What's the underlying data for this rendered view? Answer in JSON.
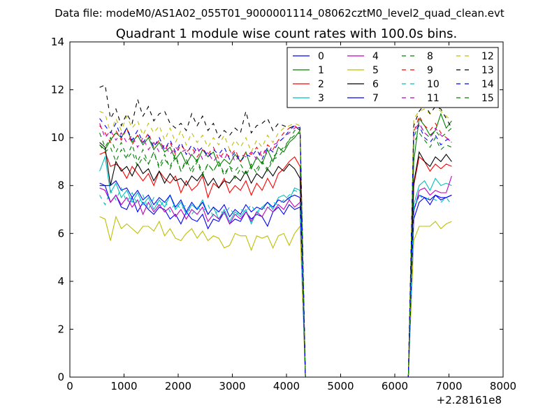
{
  "suptitle": "Data file: modeM0/AS1A02_055T01_9000001114_08062cztM0_level2_quad_clean.evt",
  "chart_data": {
    "type": "line",
    "title": "Quadrant 1 module wise count rates with 100.0s bins.",
    "xlabel": "",
    "ylabel": "",
    "x_offset_label": "+2.28161e8",
    "xlim": [
      0,
      8000
    ],
    "ylim": [
      0,
      14
    ],
    "x_ticks": [
      "0",
      "1000",
      "2000",
      "3000",
      "4000",
      "5000",
      "6000",
      "7000",
      "8000"
    ],
    "y_ticks": [
      "0",
      "2",
      "4",
      "6",
      "8",
      "10",
      "12",
      "14"
    ],
    "grid": false,
    "legend_position": "top-right",
    "legend_columns": 4,
    "x": [
      550,
      650,
      750,
      850,
      950,
      1050,
      1150,
      1250,
      1350,
      1450,
      1550,
      1650,
      1750,
      1850,
      1950,
      2050,
      2150,
      2250,
      2350,
      2450,
      2550,
      2650,
      2750,
      2850,
      2950,
      3050,
      3150,
      3250,
      3350,
      3450,
      3550,
      3650,
      3750,
      3850,
      3950,
      4050,
      4150,
      4250,
      4350,
      4450,
      4550,
      4650,
      4750,
      4850,
      4950,
      5050,
      5150,
      5250,
      5350,
      5450,
      5550,
      5650,
      5750,
      5850,
      5950,
      6050,
      6150,
      6250,
      6350,
      6450,
      6550,
      6650,
      6750,
      6850,
      6950,
      7050
    ],
    "series": [
      {
        "name": "0",
        "color": "#0000ff",
        "dash": "solid",
        "values": [
          8.0,
          8.0,
          7.3,
          7.6,
          7.1,
          7.0,
          7.5,
          6.9,
          7.3,
          7.0,
          6.8,
          7.1,
          7.0,
          6.6,
          6.8,
          6.4,
          6.9,
          6.6,
          6.5,
          6.8,
          6.2,
          6.6,
          6.5,
          6.9,
          6.4,
          6.6,
          6.5,
          6.9,
          6.6,
          6.8,
          6.7,
          6.3,
          6.9,
          7.1,
          6.8,
          7.2,
          7.0,
          7.1,
          0,
          0,
          0,
          0,
          0,
          0,
          0,
          0,
          0,
          0,
          0,
          0,
          0,
          0,
          0,
          0,
          0,
          0,
          0,
          0,
          6.6,
          7.3,
          7.5,
          7.2,
          7.6,
          7.4,
          7.5,
          7.6
        ]
      },
      {
        "name": "1",
        "color": "#008000",
        "dash": "solid",
        "values": [
          9.7,
          9.5,
          9.9,
          10.2,
          10.0,
          10.4,
          9.8,
          10.1,
          9.7,
          10.0,
          9.5,
          9.8,
          9.4,
          9.6,
          9.1,
          9.4,
          8.9,
          9.3,
          9.0,
          9.5,
          9.2,
          9.4,
          8.8,
          9.1,
          8.9,
          9.3,
          9.0,
          9.4,
          8.7,
          9.2,
          8.9,
          9.5,
          9.0,
          9.6,
          9.4,
          9.8,
          10.0,
          10.3,
          0,
          0,
          0,
          0,
          0,
          0,
          0,
          0,
          0,
          0,
          0,
          0,
          0,
          0,
          0,
          0,
          0,
          0,
          0,
          0,
          9.0,
          10.8,
          10.5,
          10.1,
          10.3,
          11.0,
          10.4,
          10.7
        ]
      },
      {
        "name": "2",
        "color": "#ff0000",
        "dash": "solid",
        "values": [
          9.3,
          9.4,
          8.8,
          8.9,
          8.7,
          8.3,
          8.8,
          8.5,
          8.2,
          8.5,
          8.0,
          8.6,
          8.3,
          8.1,
          8.4,
          7.7,
          8.2,
          7.8,
          8.0,
          8.4,
          7.5,
          8.1,
          7.9,
          8.3,
          7.7,
          8.0,
          7.8,
          8.2,
          7.6,
          8.1,
          7.8,
          8.3,
          7.9,
          8.5,
          8.7,
          9.0,
          9.2,
          8.8,
          0,
          0,
          0,
          0,
          0,
          0,
          0,
          0,
          0,
          0,
          0,
          0,
          0,
          0,
          0,
          0,
          0,
          0,
          0,
          0,
          8.0,
          9.2,
          9.0,
          8.6,
          8.9,
          8.7,
          8.9,
          8.8
        ]
      },
      {
        "name": "3",
        "color": "#00bfbf",
        "dash": "solid",
        "values": [
          8.6,
          9.2,
          7.7,
          8.1,
          7.5,
          7.8,
          7.3,
          7.7,
          7.2,
          7.5,
          7.0,
          7.4,
          7.1,
          7.6,
          7.0,
          7.3,
          6.8,
          7.2,
          7.0,
          7.4,
          6.8,
          7.1,
          6.6,
          7.0,
          6.5,
          6.9,
          6.7,
          7.0,
          6.4,
          6.9,
          7.1,
          7.3,
          7.0,
          7.5,
          7.6,
          7.4,
          7.9,
          7.8,
          0,
          0,
          0,
          0,
          0,
          0,
          0,
          0,
          0,
          0,
          0,
          0,
          0,
          0,
          0,
          0,
          0,
          0,
          0,
          0,
          7.2,
          8.0,
          8.2,
          7.8,
          8.3,
          8.0,
          8.1,
          8.0
        ]
      },
      {
        "name": "4",
        "color": "#bf00bf",
        "dash": "solid",
        "values": [
          7.9,
          7.8,
          7.3,
          7.6,
          7.2,
          7.5,
          7.1,
          7.4,
          6.8,
          7.3,
          6.9,
          7.2,
          6.9,
          7.1,
          6.7,
          7.0,
          6.6,
          7.0,
          6.8,
          7.1,
          6.5,
          6.8,
          6.6,
          6.9,
          6.4,
          6.8,
          6.6,
          6.9,
          6.5,
          6.9,
          6.7,
          7.1,
          6.9,
          7.2,
          7.0,
          7.4,
          7.1,
          7.3,
          0,
          0,
          0,
          0,
          0,
          0,
          0,
          0,
          0,
          0,
          0,
          0,
          0,
          0,
          0,
          0,
          0,
          0,
          0,
          0,
          6.9,
          7.8,
          7.9,
          7.6,
          7.8,
          7.7,
          7.7,
          8.4
        ]
      },
      {
        "name": "5",
        "color": "#bfbf00",
        "dash": "solid",
        "values": [
          6.7,
          6.6,
          5.7,
          6.7,
          6.2,
          6.4,
          6.2,
          6.0,
          6.3,
          6.3,
          6.1,
          6.5,
          5.9,
          6.2,
          5.8,
          5.7,
          6.0,
          6.2,
          5.8,
          6.1,
          5.7,
          5.9,
          5.8,
          5.4,
          5.5,
          6.0,
          5.9,
          5.9,
          5.3,
          5.9,
          5.8,
          5.9,
          5.4,
          5.9,
          6.0,
          5.5,
          6.0,
          6.3,
          0,
          0,
          0,
          0,
          0,
          0,
          0,
          0,
          0,
          0,
          0,
          0,
          0,
          0,
          0,
          0,
          0,
          0,
          0,
          0,
          5.7,
          6.3,
          6.3,
          6.3,
          6.5,
          6.2,
          6.4,
          6.5
        ]
      },
      {
        "name": "6",
        "color": "#000000",
        "dash": "solid",
        "values": [
          9.8,
          9.6,
          8.0,
          9.0,
          8.6,
          8.8,
          8.4,
          8.9,
          8.5,
          8.7,
          8.2,
          8.6,
          8.1,
          8.5,
          8.2,
          8.3,
          8.0,
          8.4,
          8.2,
          8.5,
          8.0,
          8.3,
          7.9,
          8.2,
          8.1,
          8.4,
          8.2,
          8.6,
          8.1,
          8.5,
          8.3,
          8.7,
          8.4,
          8.8,
          8.6,
          8.9,
          8.7,
          8.3,
          0,
          0,
          0,
          0,
          0,
          0,
          0,
          0,
          0,
          0,
          0,
          0,
          0,
          0,
          0,
          0,
          0,
          0,
          0,
          0,
          8.1,
          9.4,
          9.0,
          8.8,
          9.2,
          9.0,
          9.3,
          9.0
        ]
      },
      {
        "name": "7",
        "color": "#0000ff",
        "dash": "solid",
        "values": [
          8.1,
          8.0,
          8.0,
          8.2,
          7.8,
          7.9,
          7.5,
          7.8,
          7.4,
          7.6,
          7.2,
          7.5,
          7.3,
          7.6,
          7.1,
          7.4,
          6.9,
          7.3,
          7.0,
          7.3,
          6.8,
          7.1,
          6.9,
          7.2,
          6.7,
          7.0,
          6.8,
          7.2,
          6.9,
          7.1,
          7.0,
          7.3,
          7.1,
          7.4,
          7.3,
          7.5,
          7.6,
          7.5,
          0,
          0,
          0,
          0,
          0,
          0,
          0,
          0,
          0,
          0,
          0,
          0,
          0,
          0,
          0,
          0,
          0,
          0,
          0,
          0,
          7.0,
          7.6,
          7.5,
          7.4,
          7.6,
          7.5,
          7.5,
          7.6
        ]
      },
      {
        "name": "8",
        "color": "#008000",
        "dash": "dash",
        "values": [
          9.7,
          9.4,
          9.6,
          9.0,
          9.5,
          9.1,
          9.4,
          8.8,
          9.2,
          8.9,
          9.4,
          8.7,
          9.1,
          8.8,
          9.3,
          8.6,
          9.0,
          8.7,
          9.1,
          8.5,
          8.9,
          8.6,
          9.0,
          8.4,
          8.8,
          8.6,
          8.9,
          8.5,
          8.8,
          8.7,
          9.0,
          8.6,
          9.1,
          9.2,
          9.5,
          9.9,
          10.3,
          10.4,
          0,
          0,
          0,
          0,
          0,
          0,
          0,
          0,
          0,
          0,
          0,
          0,
          0,
          0,
          0,
          0,
          0,
          0,
          0,
          0,
          10.0,
          10.6,
          10.2,
          10.0,
          10.3,
          10.0,
          10.2,
          10.4
        ]
      },
      {
        "name": "9",
        "color": "#ff0000",
        "dash": "dash",
        "values": [
          10.5,
          10.2,
          9.8,
          10.3,
          9.9,
          10.4,
          9.7,
          10.1,
          9.8,
          10.2,
          9.6,
          9.9,
          9.5,
          9.8,
          9.3,
          9.7,
          9.4,
          9.6,
          9.2,
          9.5,
          9.3,
          9.6,
          9.1,
          9.4,
          9.2,
          9.5,
          9.0,
          9.4,
          9.3,
          9.6,
          9.2,
          9.7,
          9.5,
          9.9,
          10.2,
          10.4,
          10.5,
          10.3,
          0,
          0,
          0,
          0,
          0,
          0,
          0,
          0,
          0,
          0,
          0,
          0,
          0,
          0,
          0,
          0,
          0,
          0,
          0,
          0,
          10.2,
          10.9,
          10.5,
          10.3,
          10.6,
          10.2,
          10.0,
          9.8
        ]
      },
      {
        "name": "10",
        "color": "#00bfbf",
        "dash": "dash",
        "values": [
          7.6,
          7.2,
          7.8,
          7.4,
          7.9,
          7.3,
          7.7,
          7.2,
          7.6,
          7.0,
          7.5,
          7.1,
          7.4,
          6.9,
          7.3,
          7.0,
          7.2,
          6.8,
          7.1,
          6.9,
          7.2,
          6.7,
          7.0,
          6.8,
          7.1,
          6.7,
          7.0,
          6.9,
          7.2,
          6.8,
          7.1,
          7.0,
          7.3,
          7.2,
          7.4,
          7.6,
          7.8,
          7.7,
          0,
          0,
          0,
          0,
          0,
          0,
          0,
          0,
          0,
          0,
          0,
          0,
          0,
          0,
          0,
          0,
          0,
          0,
          0,
          0,
          7.0,
          7.6,
          7.4,
          7.5,
          7.4,
          7.3,
          7.5,
          7.2
        ]
      },
      {
        "name": "11",
        "color": "#bf00bf",
        "dash": "dash",
        "values": [
          10.6,
          10.0,
          10.3,
          9.9,
          10.2,
          9.8,
          10.1,
          9.6,
          10.0,
          9.5,
          9.8,
          9.4,
          9.7,
          9.3,
          9.6,
          9.4,
          9.5,
          9.2,
          9.6,
          9.1,
          9.4,
          9.0,
          9.3,
          9.1,
          9.5,
          9.0,
          9.3,
          9.2,
          9.4,
          9.1,
          9.5,
          9.3,
          9.7,
          9.8,
          10.0,
          10.2,
          10.4,
          10.5,
          0,
          0,
          0,
          0,
          0,
          0,
          0,
          0,
          0,
          0,
          0,
          0,
          0,
          0,
          0,
          0,
          0,
          0,
          0,
          0,
          10.3,
          10.6,
          10.2,
          10.0,
          10.4,
          10.1,
          10.0,
          9.8
        ]
      },
      {
        "name": "12",
        "color": "#bfbf00",
        "dash": "dash",
        "values": [
          11.1,
          11.0,
          10.2,
          10.8,
          10.3,
          10.9,
          10.4,
          10.7,
          10.1,
          10.6,
          10.2,
          10.5,
          9.9,
          10.4,
          9.8,
          10.3,
          9.7,
          10.2,
          9.8,
          10.1,
          9.6,
          10.0,
          9.7,
          10.1,
          9.5,
          9.9,
          9.6,
          10.0,
          9.4,
          9.9,
          9.6,
          10.1,
          9.8,
          10.2,
          10.4,
          10.5,
          10.6,
          10.5,
          0,
          0,
          0,
          0,
          0,
          0,
          0,
          0,
          0,
          0,
          0,
          0,
          0,
          0,
          0,
          0,
          0,
          0,
          0,
          0,
          10.8,
          11.1,
          11.2,
          11.0,
          11.3,
          11.1,
          10.9,
          10.7
        ]
      },
      {
        "name": "13",
        "color": "#000000",
        "dash": "dash",
        "values": [
          12.1,
          12.2,
          10.8,
          11.2,
          10.5,
          11.0,
          10.6,
          11.6,
          10.9,
          11.3,
          10.7,
          11.0,
          11.1,
          10.6,
          10.4,
          10.6,
          10.3,
          11.0,
          10.5,
          10.9,
          10.3,
          10.6,
          10.0,
          10.3,
          10.1,
          10.4,
          10.2,
          11.1,
          10.2,
          10.5,
          10.6,
          10.8,
          10.3,
          10.6,
          10.5,
          10.4,
          10.5,
          10.3,
          0,
          0,
          0,
          0,
          0,
          0,
          0,
          0,
          0,
          0,
          0,
          0,
          0,
          0,
          0,
          0,
          0,
          0,
          0,
          0,
          10.5,
          11.1,
          11.4,
          11.0,
          11.3,
          11.2,
          10.8,
          10.4
        ]
      },
      {
        "name": "14",
        "color": "#0000ff",
        "dash": "dash",
        "values": [
          10.8,
          10.5,
          10.2,
          10.6,
          10.0,
          10.4,
          9.9,
          10.3,
          9.8,
          10.1,
          9.6,
          10.0,
          9.5,
          9.9,
          9.4,
          9.8,
          9.3,
          9.7,
          9.4,
          9.6,
          9.2,
          9.5,
          9.3,
          9.6,
          9.1,
          9.4,
          9.0,
          9.3,
          9.2,
          9.5,
          9.1,
          9.6,
          9.4,
          9.8,
          10.0,
          10.3,
          10.5,
          10.4,
          0,
          0,
          0,
          0,
          0,
          0,
          0,
          0,
          0,
          0,
          0,
          0,
          0,
          0,
          0,
          0,
          0,
          0,
          0,
          0,
          10.2,
          10.5,
          10.0,
          9.8,
          10.1,
          9.7,
          9.9,
          10.0
        ]
      },
      {
        "name": "15",
        "color": "#008000",
        "dash": "dash",
        "values": [
          10.2,
          9.6,
          10.0,
          9.4,
          9.8,
          9.2,
          9.7,
          9.0,
          9.5,
          8.9,
          9.4,
          8.8,
          9.3,
          8.7,
          9.2,
          8.6,
          9.1,
          8.5,
          9.0,
          8.4,
          8.9,
          8.6,
          9.0,
          8.5,
          8.8,
          8.3,
          8.7,
          8.4,
          8.9,
          8.5,
          9.0,
          8.7,
          9.2,
          9.4,
          9.6,
          9.9,
          10.1,
          10.2,
          0,
          0,
          0,
          0,
          0,
          0,
          0,
          0,
          0,
          0,
          0,
          0,
          0,
          0,
          0,
          0,
          0,
          0,
          0,
          0,
          9.8,
          10.2,
          9.9,
          9.6,
          10.0,
          9.5,
          9.7,
          9.6
        ]
      }
    ]
  }
}
